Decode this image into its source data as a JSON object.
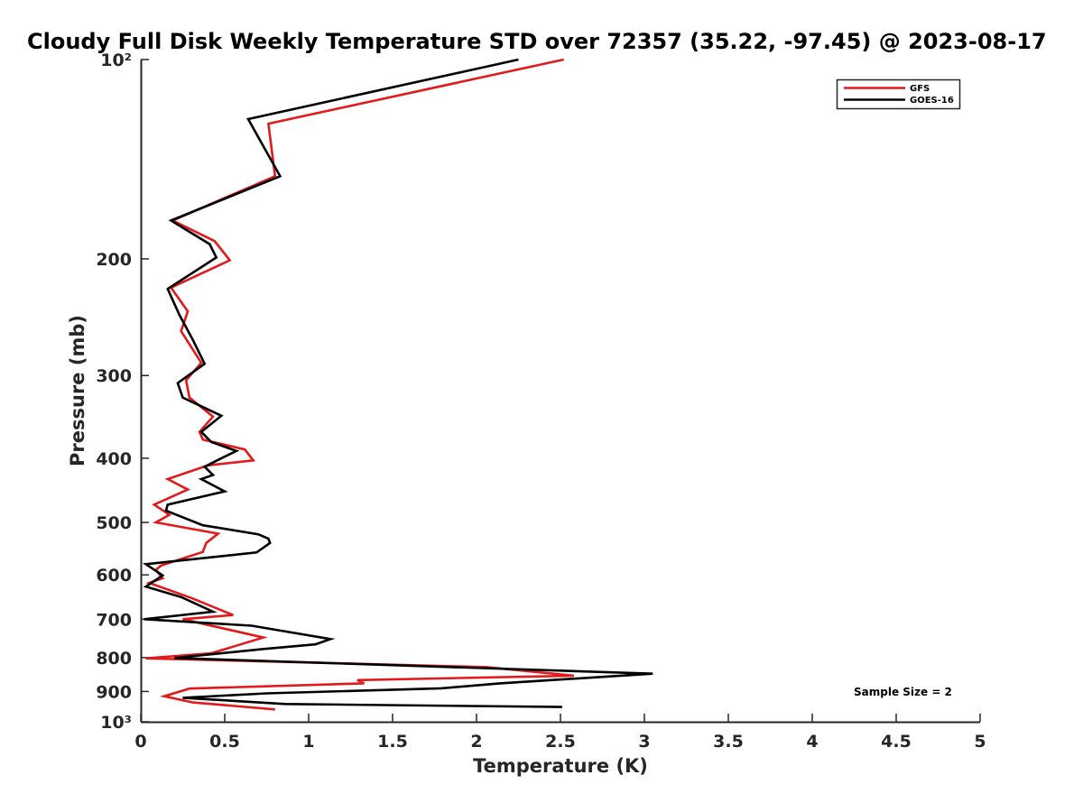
{
  "chart_data": {
    "type": "line",
    "title": "Cloudy Full Disk Weekly Temperature STD over 72357 (35.22, -97.45) @ 2023-08-17",
    "xlabel": "Temperature (K)",
    "ylabel": "Pressure (mb)",
    "xlim": [
      0,
      5
    ],
    "ylim": [
      100,
      1000
    ],
    "y_scale": "log",
    "y_reversed": true,
    "x_ticks": [
      0,
      0.5,
      1,
      1.5,
      2,
      2.5,
      3,
      3.5,
      4,
      4.5,
      5
    ],
    "x_tick_labels": [
      "0",
      "0.5",
      "1",
      "1.5",
      "2",
      "2.5",
      "3",
      "3.5",
      "4",
      "4.5",
      "5"
    ],
    "y_ticks": [
      100,
      200,
      300,
      400,
      500,
      600,
      700,
      800,
      900,
      1000
    ],
    "y_tick_labels": [
      "10²",
      "200",
      "300",
      "400",
      "500",
      "600",
      "700",
      "800",
      "900",
      "10³"
    ],
    "grid": false,
    "legend_position": "top-right",
    "annotation": "Sample Size = 2",
    "series": [
      {
        "name": "GFS",
        "color": "#e31a1c",
        "points": [
          [
            2.52,
            100
          ],
          [
            0.76,
            125
          ],
          [
            0.8,
            150
          ],
          [
            0.19,
            175
          ],
          [
            0.44,
            188
          ],
          [
            0.53,
            201
          ],
          [
            0.18,
            221
          ],
          [
            0.28,
            240
          ],
          [
            0.24,
            257
          ],
          [
            0.36,
            287
          ],
          [
            0.27,
            305
          ],
          [
            0.29,
            324
          ],
          [
            0.43,
            346
          ],
          [
            0.35,
            365
          ],
          [
            0.37,
            375
          ],
          [
            0.62,
            388
          ],
          [
            0.67,
            403
          ],
          [
            0.4,
            410
          ],
          [
            0.16,
            430
          ],
          [
            0.28,
            446
          ],
          [
            0.08,
            470
          ],
          [
            0.17,
            487
          ],
          [
            0.09,
            500
          ],
          [
            0.46,
            520
          ],
          [
            0.39,
            537
          ],
          [
            0.37,
            554
          ],
          [
            0.12,
            581
          ],
          [
            0.09,
            590
          ],
          [
            0.13,
            607
          ],
          [
            0.05,
            617
          ],
          [
            0.3,
            650
          ],
          [
            0.55,
            690
          ],
          [
            0.25,
            700
          ],
          [
            0.73,
            746
          ],
          [
            0.42,
            788
          ],
          [
            0.03,
            802
          ],
          [
            2.06,
            827
          ],
          [
            2.58,
            852
          ],
          [
            1.29,
            865
          ],
          [
            1.33,
            875
          ],
          [
            0.29,
            891
          ],
          [
            0.14,
            915
          ],
          [
            0.31,
            935
          ],
          [
            0.8,
            958
          ]
        ]
      },
      {
        "name": "GOES-16",
        "color": "#000000",
        "points": [
          [
            2.25,
            100
          ],
          [
            0.64,
            123
          ],
          [
            0.83,
            150
          ],
          [
            0.18,
            175
          ],
          [
            0.41,
            190
          ],
          [
            0.45,
            199
          ],
          [
            0.16,
            222
          ],
          [
            0.23,
            243
          ],
          [
            0.31,
            265
          ],
          [
            0.38,
            288
          ],
          [
            0.22,
            308
          ],
          [
            0.25,
            324
          ],
          [
            0.48,
            345
          ],
          [
            0.36,
            365
          ],
          [
            0.42,
            378
          ],
          [
            0.57,
            390
          ],
          [
            0.48,
            400
          ],
          [
            0.38,
            412
          ],
          [
            0.43,
            424
          ],
          [
            0.36,
            430
          ],
          [
            0.5,
            449
          ],
          [
            0.16,
            470
          ],
          [
            0.15,
            480
          ],
          [
            0.37,
            505
          ],
          [
            0.7,
            521
          ],
          [
            0.76,
            529
          ],
          [
            0.77,
            537
          ],
          [
            0.69,
            555
          ],
          [
            0.03,
            578
          ],
          [
            0.13,
            601
          ],
          [
            0.03,
            625
          ],
          [
            0.24,
            648
          ],
          [
            0.43,
            682
          ],
          [
            0.02,
            700
          ],
          [
            0.66,
            716
          ],
          [
            1.13,
            750
          ],
          [
            1.04,
            764
          ],
          [
            0.74,
            776
          ],
          [
            0.2,
            801
          ],
          [
            3.05,
            846
          ],
          [
            2.14,
            875
          ],
          [
            1.79,
            890
          ],
          [
            0.75,
            906
          ],
          [
            0.25,
            920
          ],
          [
            0.86,
            940
          ],
          [
            2.51,
            950
          ]
        ]
      }
    ]
  }
}
